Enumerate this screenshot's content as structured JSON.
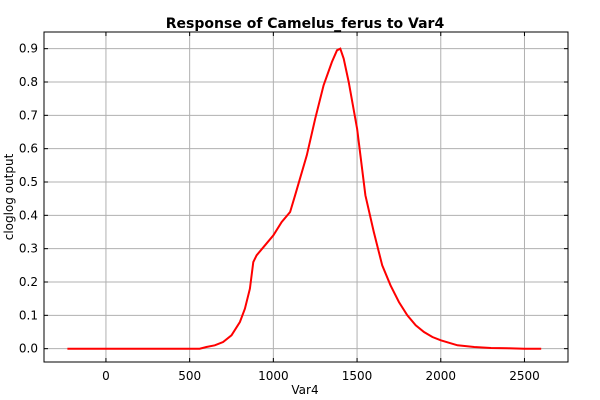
{
  "chart_data": {
    "type": "line",
    "title": "Response of Camelus_ferus to Var4",
    "xlabel": "Var4",
    "ylabel": "cloglog output",
    "xlim": [
      -370,
      2760
    ],
    "ylim": [
      -0.04,
      0.95
    ],
    "xticks": [
      0,
      500,
      1000,
      1500,
      2000,
      2500
    ],
    "yticks": [
      0.0,
      0.1,
      0.2,
      0.3,
      0.4,
      0.5,
      0.6,
      0.7,
      0.8,
      0.9
    ],
    "ytick_labels": [
      "0.0",
      "0.1",
      "0.2",
      "0.3",
      "0.4",
      "0.5",
      "0.6",
      "0.7",
      "0.8",
      "0.9"
    ],
    "grid": true,
    "series_color": "#ff0000",
    "series": [
      {
        "x": [
          -230,
          0,
          300,
          560,
          600,
          650,
          700,
          750,
          800,
          830,
          860,
          880,
          900,
          950,
          1000,
          1050,
          1100,
          1130,
          1200,
          1250,
          1300,
          1350,
          1380,
          1400,
          1420,
          1450,
          1500,
          1550,
          1600,
          1650,
          1700,
          1750,
          1800,
          1850,
          1900,
          1950,
          2000,
          2100,
          2200,
          2300,
          2400,
          2500,
          2600
        ],
        "y": [
          0.0,
          0.0,
          0.0,
          0.0,
          0.005,
          0.01,
          0.02,
          0.04,
          0.08,
          0.12,
          0.18,
          0.26,
          0.28,
          0.31,
          0.34,
          0.38,
          0.41,
          0.46,
          0.58,
          0.69,
          0.79,
          0.86,
          0.895,
          0.9,
          0.87,
          0.8,
          0.66,
          0.46,
          0.35,
          0.25,
          0.19,
          0.14,
          0.1,
          0.07,
          0.05,
          0.035,
          0.025,
          0.01,
          0.005,
          0.002,
          0.001,
          0.0,
          0.0
        ]
      }
    ]
  }
}
